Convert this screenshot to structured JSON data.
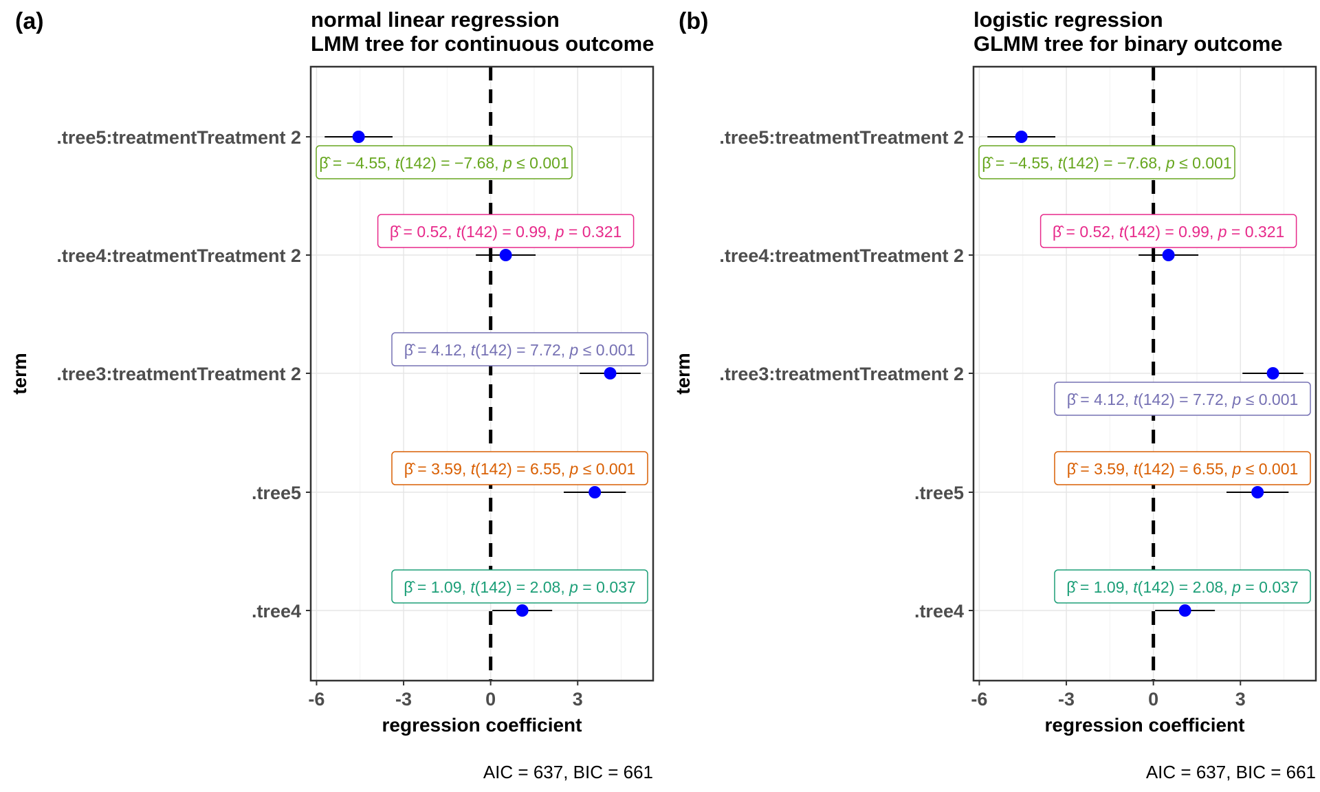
{
  "chart_data": [
    {
      "type": "scatter",
      "panel_tag": "(a)",
      "title": [
        "normal linear regression",
        "LMM tree for continuous outcome"
      ],
      "xlabel": "regression coefficient",
      "ylabel": "term",
      "caption": "AIC = 637, BIC = 661",
      "xlim": [
        -6.2,
        5.6
      ],
      "xticks": [
        -6,
        -3,
        0,
        3
      ],
      "xtick_labels": [
        "-6",
        "-3",
        "0",
        "3"
      ],
      "reference_line": 0,
      "grid": true,
      "terms": [
        ".tree4",
        ".tree5",
        ".tree3:treatmentTreatment 2",
        ".tree4:treatmentTreatment 2",
        ".tree5:treatmentTreatment 2"
      ],
      "estimates": [
        1.09,
        3.59,
        4.12,
        0.52,
        -4.55
      ],
      "ci_low": [
        0.06,
        2.52,
        3.07,
        -0.51,
        -5.72
      ],
      "ci_high": [
        2.12,
        4.66,
        5.17,
        1.55,
        -3.38
      ],
      "labels": [
        {
          "beta": "1.09",
          "stat": "t(142) = 2.08",
          "p": "p = 0.037",
          "color": "#1b9e77",
          "pos": "above"
        },
        {
          "beta": "3.59",
          "stat": "t(142) = 6.55",
          "p": "p ≤ 0.001",
          "color": "#d95f02",
          "pos": "above"
        },
        {
          "beta": "4.12",
          "stat": "t(142) = 7.72",
          "p": "p ≤ 0.001",
          "color": "#7570b3",
          "pos": "above"
        },
        {
          "beta": "0.52",
          "stat": "t(142) = 0.99",
          "p": "p = 0.321",
          "color": "#e7298a",
          "pos": "above"
        },
        {
          "beta": "−4.55",
          "stat": "t(142) = −7.68",
          "p": "p ≤ 0.001",
          "color": "#66a61e",
          "pos": "below"
        }
      ]
    },
    {
      "type": "scatter",
      "panel_tag": "(b)",
      "title": [
        "logistic regression",
        "GLMM tree for binary outcome"
      ],
      "xlabel": "regression coefficient",
      "ylabel": "term",
      "caption": "AIC = 637, BIC = 661",
      "xlim": [
        -6.2,
        5.6
      ],
      "xticks": [
        -6,
        -3,
        0,
        3
      ],
      "xtick_labels": [
        "-6",
        "-3",
        "0",
        "3"
      ],
      "reference_line": 0,
      "grid": true,
      "terms": [
        ".tree4",
        ".tree5",
        ".tree3:treatmentTreatment 2",
        ".tree4:treatmentTreatment 2",
        ".tree5:treatmentTreatment 2"
      ],
      "estimates": [
        1.09,
        3.59,
        4.12,
        0.52,
        -4.55
      ],
      "ci_low": [
        0.06,
        2.52,
        3.07,
        -0.51,
        -5.72
      ],
      "ci_high": [
        2.12,
        4.66,
        5.17,
        1.55,
        -3.38
      ],
      "labels": [
        {
          "beta": "1.09",
          "stat": "t(142) = 2.08",
          "p": "p = 0.037",
          "color": "#1b9e77",
          "pos": "above"
        },
        {
          "beta": "3.59",
          "stat": "t(142) = 6.55",
          "p": "p ≤ 0.001",
          "color": "#d95f02",
          "pos": "above"
        },
        {
          "beta": "4.12",
          "stat": "t(142) = 7.72",
          "p": "p ≤ 0.001",
          "color": "#7570b3",
          "pos": "below"
        },
        {
          "beta": "0.52",
          "stat": "t(142) = 0.99",
          "p": "p = 0.321",
          "color": "#e7298a",
          "pos": "above"
        },
        {
          "beta": "−4.55",
          "stat": "t(142) = −7.68",
          "p": "p ≤ 0.001",
          "color": "#66a61e",
          "pos": "below"
        }
      ]
    }
  ]
}
